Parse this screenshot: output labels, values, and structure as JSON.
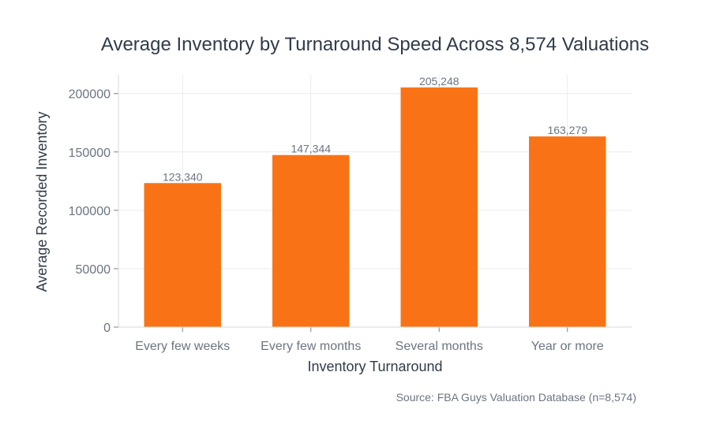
{
  "chart_data": {
    "type": "bar",
    "title": "Average Inventory by Turnaround Speed Across 8,574 Valuations",
    "xlabel": "Inventory Turnaround",
    "ylabel": "Average Recorded Inventory",
    "categories": [
      "Every few weeks",
      "Every few months",
      "Several months",
      "Year or more"
    ],
    "values": [
      123340,
      147344,
      205248,
      163279
    ],
    "data_labels": [
      "123,340",
      "147,344",
      "205,248",
      "163,279"
    ],
    "yticks": [
      0,
      50000,
      100000,
      150000,
      200000
    ],
    "ylim": [
      0,
      216000
    ],
    "bar_color": "#f97316",
    "grid": true,
    "legend": "none",
    "source": "Source: FBA Guys Valuation Database (n=8,574)"
  }
}
